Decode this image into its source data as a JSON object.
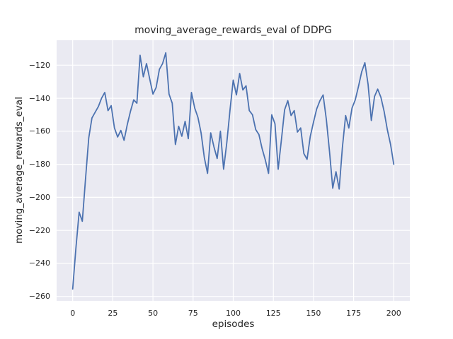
{
  "figure": {
    "title": "moving_average_rewards_eval of DDPG",
    "xlabel": "episodes",
    "ylabel": "moving_average_rewards_eval"
  },
  "chart_data": {
    "type": "line",
    "title": "moving_average_rewards_eval of DDPG",
    "xlabel": "episodes",
    "ylabel": "moving_average_rewards_eval",
    "legend_position": "none",
    "grid": true,
    "xlim": [
      -10,
      210
    ],
    "ylim": [
      -262.7,
      -104.9
    ],
    "xticks": [
      0,
      25,
      50,
      75,
      100,
      125,
      150,
      175,
      200
    ],
    "yticks": [
      -120,
      -140,
      -160,
      -180,
      -200,
      -220,
      -240,
      -260
    ],
    "xtick_labels": [
      "0",
      "25",
      "50",
      "75",
      "100",
      "125",
      "150",
      "175",
      "200"
    ],
    "ytick_labels": [
      "−120",
      "−140",
      "−160",
      "−180",
      "−200",
      "−220",
      "−240",
      "−260"
    ],
    "style": {
      "line_color": "#4c72b0",
      "line_width": 1.8,
      "axes_background": "#eaeaf2",
      "grid_color": "#ffffff",
      "text_color": "#262626",
      "figure_background": "#ffffff"
    },
    "series": [
      {
        "name": "moving_average_rewards_eval",
        "x": [
          0,
          2,
          4,
          6,
          8,
          10,
          12,
          14,
          16,
          18,
          20,
          22,
          24,
          26,
          28,
          30,
          32,
          34,
          36,
          38,
          40,
          42,
          44,
          46,
          48,
          50,
          52,
          54,
          56,
          58,
          60,
          62,
          64,
          66,
          68,
          70,
          72,
          74,
          76,
          78,
          80,
          82,
          84,
          86,
          88,
          90,
          92,
          94,
          96,
          98,
          100,
          102,
          104,
          106,
          108,
          110,
          112,
          114,
          116,
          118,
          120,
          122,
          124,
          126,
          128,
          130,
          132,
          134,
          136,
          138,
          140,
          142,
          144,
          146,
          148,
          150,
          152,
          154,
          156,
          158,
          160,
          162,
          164,
          166,
          168,
          170,
          172,
          174,
          176,
          178,
          180,
          182,
          184,
          186,
          188,
          190,
          192,
          194,
          196,
          198,
          200
        ],
        "y": [
          -255.5,
          -231,
          -209,
          -214.5,
          -189,
          -164,
          -152,
          -148.5,
          -145,
          -140,
          -136.5,
          -147.5,
          -144.5,
          -158,
          -163.5,
          -159.5,
          -165.5,
          -156,
          -148,
          -141,
          -143,
          -114,
          -127,
          -119,
          -128.5,
          -137.5,
          -133.5,
          -122.5,
          -119,
          -112.5,
          -137.5,
          -143,
          -168,
          -157,
          -163,
          -154,
          -164.5,
          -136.5,
          -146,
          -151.5,
          -161,
          -176,
          -185.5,
          -161,
          -169.5,
          -176.5,
          -160,
          -183,
          -167,
          -147,
          -129,
          -138,
          -125,
          -135,
          -132.5,
          -147.5,
          -150,
          -159,
          -162,
          -170.5,
          -177.5,
          -185.5,
          -150,
          -155.5,
          -183,
          -165.5,
          -147,
          -141.5,
          -150.5,
          -147.5,
          -160.5,
          -158,
          -173.5,
          -177,
          -163,
          -154.5,
          -146.5,
          -141.5,
          -138,
          -153,
          -172.5,
          -194.5,
          -184.5,
          -195,
          -170,
          -150.5,
          -158,
          -146,
          -141,
          -133,
          -124,
          -118.5,
          -131.5,
          -153.5,
          -139,
          -134.5,
          -139.5,
          -148,
          -159,
          -168,
          -180
        ]
      }
    ]
  }
}
